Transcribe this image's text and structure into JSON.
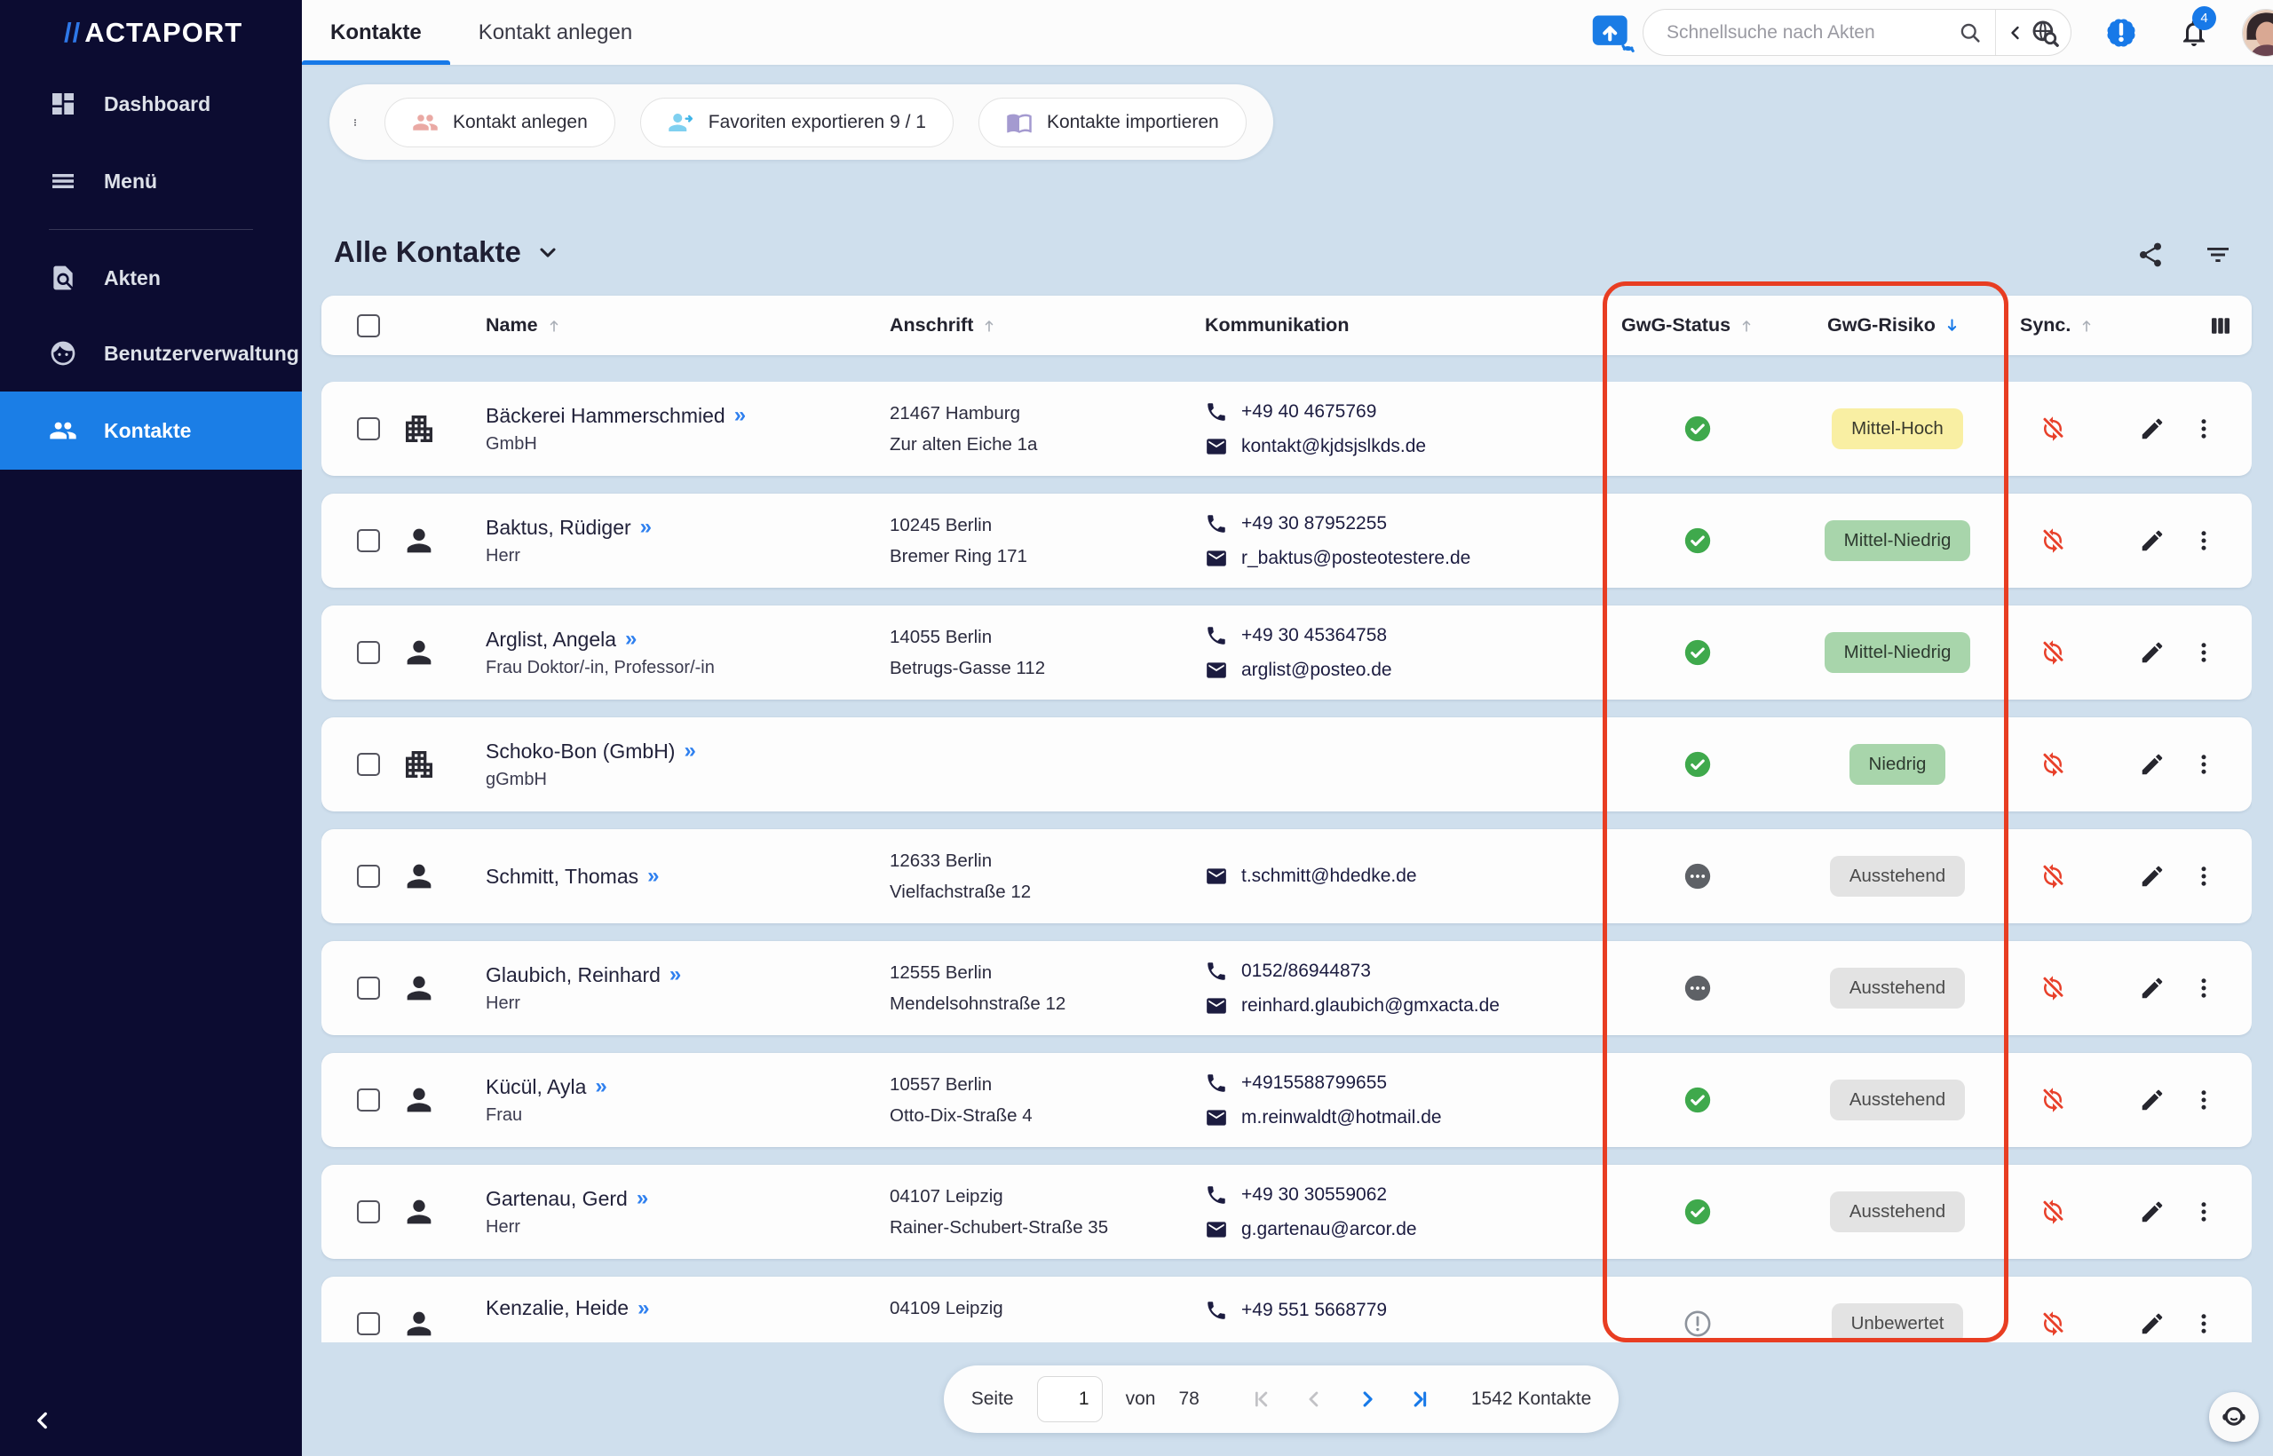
{
  "app": {
    "logo_slashes": "//",
    "logo_text": "ACTAPORT"
  },
  "colors": {
    "sidebar_bg": "#0c0c31",
    "active_item": "#1b7ee6",
    "accent_blue": "#1779e8",
    "page_bg": "#cfdfed",
    "annotation_red": "#e83d22",
    "status_ok_green": "#3fa94c",
    "chip_yellow": "#f9efa3",
    "chip_green": "#a8d5ab",
    "chip_gray": "#e3e3e3",
    "sync_off_red": "#e8402a"
  },
  "sidebar": {
    "items": [
      {
        "label": "Dashboard"
      },
      {
        "label": "Menü"
      },
      {
        "label": "Akten"
      },
      {
        "label": "Benutzerverwaltung"
      },
      {
        "label": "Kontakte",
        "active": true
      }
    ],
    "collapse": "‹"
  },
  "topbar": {
    "tabs": [
      {
        "label": "Kontakte",
        "active": true
      },
      {
        "label": "Kontakt anlegen",
        "active": false
      }
    ],
    "search": {
      "placeholder": "Schnellsuche nach Akten"
    },
    "notifications": {
      "count": "4"
    }
  },
  "toolbar": {
    "buttons": [
      {
        "label": "Kontakt anlegen"
      },
      {
        "label": "Favoriten exportieren 9 / 1"
      },
      {
        "label": "Kontakte importieren"
      }
    ]
  },
  "view": {
    "title": "Alle Kontakte"
  },
  "table": {
    "headers": {
      "name": "Name",
      "anschrift": "Anschrift",
      "kommunikation": "Kommunikation",
      "gwg_status": "GwG-Status",
      "gwg_risiko": "GwG-Risiko",
      "sync": "Sync."
    },
    "sort": {
      "name": "asc",
      "anschrift": "asc",
      "gwg_status": "asc",
      "gwg_risiko": "desc-active",
      "sync": "asc"
    },
    "rows": [
      {
        "type": "company",
        "name": "Bäckerei Hammerschmied",
        "subtitle": "GmbH",
        "zip_city": "21467 Hamburg",
        "street": "Zur alten Eiche 1a",
        "phone": "+49 40 4675769",
        "email": "kontakt@kjdsjslkds.de",
        "status": "ok",
        "risk": "Mittel-Hoch",
        "risk_color": "yellow"
      },
      {
        "type": "person",
        "name": "Baktus, Rüdiger",
        "subtitle": "Herr",
        "zip_city": "10245 Berlin",
        "street": "Bremer Ring 171",
        "phone": "+49 30 87952255",
        "email": "r_baktus@posteotestere.de",
        "status": "ok",
        "risk": "Mittel-Niedrig",
        "risk_color": "green"
      },
      {
        "type": "person",
        "name": "Arglist, Angela",
        "subtitle": "Frau Doktor/-in, Professor/-in",
        "zip_city": "14055 Berlin",
        "street": "Betrugs-Gasse 112",
        "phone": "+49 30 45364758",
        "email": "arglist@posteo.de",
        "status": "ok",
        "risk": "Mittel-Niedrig",
        "risk_color": "green"
      },
      {
        "type": "company",
        "name": "Schoko-Bon (GmbH)",
        "subtitle": "gGmbH",
        "status": "ok",
        "risk": "Niedrig",
        "risk_color": "green"
      },
      {
        "type": "person",
        "name": "Schmitt, Thomas",
        "zip_city": "12633 Berlin",
        "street": "Vielfachstraße 12",
        "email": "t.schmitt@hdedke.de",
        "status": "pending",
        "risk": "Ausstehend",
        "risk_color": "gray"
      },
      {
        "type": "person",
        "name": "Glaubich, Reinhard",
        "subtitle": "Herr",
        "zip_city": "12555 Berlin",
        "street": "Mendelsohnstraße 12",
        "phone": "0152/86944873",
        "email": "reinhard.glaubich@gmxacta.de",
        "status": "pending",
        "risk": "Ausstehend",
        "risk_color": "gray"
      },
      {
        "type": "person",
        "name": "Kücül, Ayla",
        "subtitle": "Frau",
        "zip_city": "10557 Berlin",
        "street": "Otto-Dix-Straße 4",
        "phone": "+4915588799655",
        "email": "m.reinwaldt@hotmail.de",
        "status": "ok",
        "risk": "Ausstehend",
        "risk_color": "gray"
      },
      {
        "type": "person",
        "name": "Gartenau, Gerd",
        "subtitle": "Herr",
        "zip_city": "04107 Leipzig",
        "street": "Rainer-Schubert-Straße 35",
        "phone": "+49 30 30559062",
        "email": "g.gartenau@arcor.de",
        "status": "ok",
        "risk": "Ausstehend",
        "risk_color": "gray"
      },
      {
        "type": "person",
        "name": "Kenzalie, Heide",
        "zip_city": "04109 Leipzig",
        "phone": "+49 551 5668779",
        "status": "unrated",
        "risk": "Unbewertet",
        "risk_color": "gray",
        "partial": true
      }
    ]
  },
  "pagination": {
    "label_page": "Seite",
    "page": "1",
    "label_of": "von",
    "total_pages": "78",
    "total_label": "1542 Kontakte"
  }
}
